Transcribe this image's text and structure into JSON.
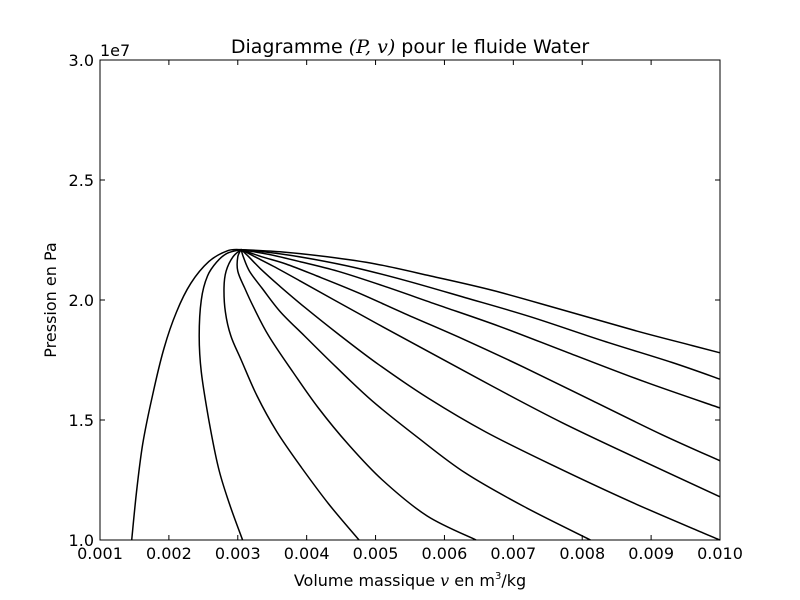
{
  "chart_data": {
    "type": "line",
    "title": {
      "prefix": "Diagramme ",
      "math": "(P, v)",
      "suffix": " pour le fluide Water"
    },
    "xlabel": {
      "prefix": "Volume massique ",
      "math": "v",
      "middle": " en m",
      "exp": "3",
      "suffix": "/kg"
    },
    "ylabel": "Pression en Pa",
    "y_offset_label": "1e7",
    "xlim": [
      0.001,
      0.01
    ],
    "ylim": [
      10000000.0,
      30000000.0
    ],
    "x_ticks": [
      0.001,
      0.002,
      0.003,
      0.004,
      0.005,
      0.006,
      0.007,
      0.008,
      0.009,
      0.01
    ],
    "x_tick_labels": [
      "0.001",
      "0.002",
      "0.003",
      "0.004",
      "0.005",
      "0.006",
      "0.007",
      "0.008",
      "0.009",
      "0.010"
    ],
    "y_ticks": [
      10000000.0,
      15000000.0,
      20000000.0,
      25000000.0,
      30000000.0
    ],
    "y_tick_labels": [
      "1.0",
      "1.5",
      "2.0",
      "2.5",
      "3.0"
    ],
    "grid": false,
    "legend": "none",
    "line_color": "#000000",
    "series": [
      {
        "points": [
          [
            0.00146,
            10000000.0
          ],
          [
            0.00153,
            12000000.0
          ],
          [
            0.00162,
            14000000.0
          ],
          [
            0.00176,
            16000000.0
          ],
          [
            0.00193,
            18000000.0
          ],
          [
            0.00211,
            19500000.0
          ],
          [
            0.00232,
            20700000.0
          ],
          [
            0.00258,
            21600000.0
          ],
          [
            0.00285,
            22050000.0
          ],
          [
            0.00305,
            22100000.0
          ]
        ]
      },
      {
        "points": [
          [
            0.00305,
            22100000.0
          ],
          [
            0.00285,
            21950000.0
          ],
          [
            0.0027,
            21600000.0
          ],
          [
            0.00256,
            21000000.0
          ],
          [
            0.00247,
            20000000.0
          ],
          [
            0.00244,
            18500000.0
          ],
          [
            0.00247,
            17000000.0
          ],
          [
            0.00258,
            15000000.0
          ],
          [
            0.00272,
            13000000.0
          ],
          [
            0.00288,
            11500000.0
          ],
          [
            0.00307,
            10000000.0
          ]
        ]
      },
      {
        "points": [
          [
            0.00305,
            22100000.0
          ],
          [
            0.00293,
            21800000.0
          ],
          [
            0.00283,
            21200000.0
          ],
          [
            0.0028,
            20500000.0
          ],
          [
            0.00282,
            19500000.0
          ],
          [
            0.0029,
            18500000.0
          ],
          [
            0.00305,
            17500000.0
          ],
          [
            0.00328,
            16000000.0
          ],
          [
            0.00357,
            14500000.0
          ],
          [
            0.00393,
            13000000.0
          ],
          [
            0.00432,
            11500000.0
          ],
          [
            0.00476,
            10000000.0
          ]
        ]
      },
      {
        "points": [
          [
            0.00305,
            22100000.0
          ],
          [
            0.003,
            21800000.0
          ],
          [
            0.003,
            21200000.0
          ],
          [
            0.0031,
            20500000.0
          ],
          [
            0.00323,
            19700000.0
          ],
          [
            0.00345,
            18500000.0
          ],
          [
            0.0038,
            17000000.0
          ],
          [
            0.00417,
            15500000.0
          ],
          [
            0.0046,
            14000000.0
          ],
          [
            0.0051,
            12500000.0
          ],
          [
            0.00575,
            11000000.0
          ],
          [
            0.00646,
            10000000.0
          ]
        ]
      },
      {
        "points": [
          [
            0.00305,
            22100000.0
          ],
          [
            0.00308,
            21800000.0
          ],
          [
            0.00317,
            21200000.0
          ],
          [
            0.00335,
            20500000.0
          ],
          [
            0.00362,
            19500000.0
          ],
          [
            0.00397,
            18500000.0
          ],
          [
            0.00443,
            17200000.0
          ],
          [
            0.00495,
            15800000.0
          ],
          [
            0.0056,
            14300000.0
          ],
          [
            0.0063,
            12800000.0
          ],
          [
            0.00715,
            11400000.0
          ],
          [
            0.00812,
            10000000.0
          ]
        ]
      },
      {
        "points": [
          [
            0.00305,
            22100000.0
          ],
          [
            0.00316,
            21800000.0
          ],
          [
            0.00333,
            21300000.0
          ],
          [
            0.0036,
            20600000.0
          ],
          [
            0.00397,
            19700000.0
          ],
          [
            0.00445,
            18600000.0
          ],
          [
            0.00505,
            17300000.0
          ],
          [
            0.00577,
            15900000.0
          ],
          [
            0.0066,
            14500000.0
          ],
          [
            0.00758,
            13100000.0
          ],
          [
            0.0087,
            11600000.0
          ],
          [
            0.00975,
            10300000.0
          ],
          [
            0.01,
            10000000.0
          ]
        ]
      },
      {
        "points": [
          [
            0.00305,
            22100000.0
          ],
          [
            0.00325,
            21800000.0
          ],
          [
            0.00352,
            21400000.0
          ],
          [
            0.0039,
            20800000.0
          ],
          [
            0.0044,
            20000000.0
          ],
          [
            0.00503,
            19000000.0
          ],
          [
            0.0058,
            17800000.0
          ],
          [
            0.0067,
            16400000.0
          ],
          [
            0.0077,
            14900000.0
          ],
          [
            0.0088,
            13400000.0
          ],
          [
            0.01,
            11800000.0
          ]
        ]
      },
      {
        "points": [
          [
            0.00305,
            22100000.0
          ],
          [
            0.00335,
            21800000.0
          ],
          [
            0.0037,
            21500000.0
          ],
          [
            0.00415,
            21000000.0
          ],
          [
            0.00475,
            20300000.0
          ],
          [
            0.00545,
            19400000.0
          ],
          [
            0.00625,
            18400000.0
          ],
          [
            0.00715,
            17200000.0
          ],
          [
            0.00815,
            15800000.0
          ],
          [
            0.00915,
            14400000.0
          ],
          [
            0.01,
            13300000.0
          ]
        ]
      },
      {
        "points": [
          [
            0.00305,
            22100000.0
          ],
          [
            0.00345,
            21900000.0
          ],
          [
            0.0039,
            21600000.0
          ],
          [
            0.00445,
            21200000.0
          ],
          [
            0.0051,
            20600000.0
          ],
          [
            0.0059,
            19800000.0
          ],
          [
            0.0068,
            18900000.0
          ],
          [
            0.0078,
            17800000.0
          ],
          [
            0.0089,
            16600000.0
          ],
          [
            0.01,
            15500000.0
          ]
        ]
      },
      {
        "points": [
          [
            0.00305,
            22100000.0
          ],
          [
            0.00355,
            21950000.0
          ],
          [
            0.0041,
            21700000.0
          ],
          [
            0.0047,
            21350000.0
          ],
          [
            0.00545,
            20800000.0
          ],
          [
            0.0063,
            20100000.0
          ],
          [
            0.00725,
            19300000.0
          ],
          [
            0.0083,
            18300000.0
          ],
          [
            0.0093,
            17400000.0
          ],
          [
            0.01,
            16700000.0
          ]
        ]
      },
      {
        "points": [
          [
            0.00305,
            22100000.0
          ],
          [
            0.00365,
            22000000.0
          ],
          [
            0.0043,
            21800000.0
          ],
          [
            0.005,
            21500000.0
          ],
          [
            0.0058,
            21000000.0
          ],
          [
            0.0067,
            20400000.0
          ],
          [
            0.0077,
            19600000.0
          ],
          [
            0.0088,
            18700000.0
          ],
          [
            0.0096,
            18100000.0
          ],
          [
            0.01,
            17800000.0
          ]
        ]
      }
    ]
  }
}
